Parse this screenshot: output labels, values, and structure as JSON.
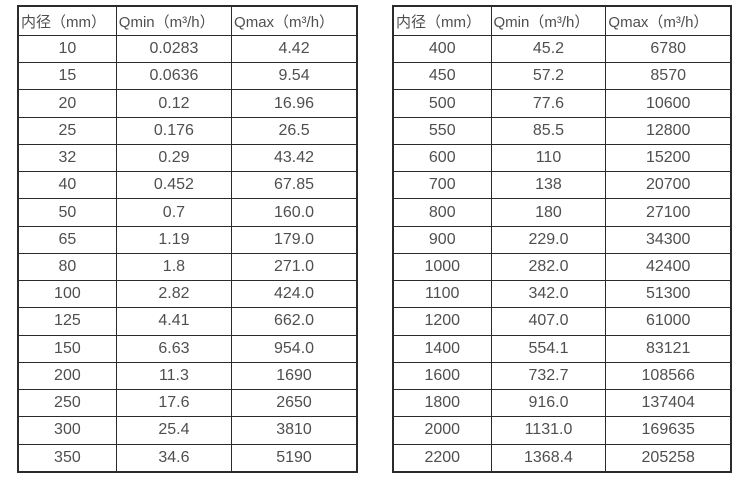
{
  "page": {
    "background_color": "#ffffff",
    "text_color": "#4f4f4f",
    "border_color": "#2b2b2b"
  },
  "tables": [
    {
      "name": "small-diameters",
      "header": [
        "内径（mm）",
        "Qmin（m³/h）",
        "Qmax（m³/h）"
      ],
      "rows": [
        [
          "10",
          "0.0283",
          "4.42"
        ],
        [
          "15",
          "0.0636",
          "9.54"
        ],
        [
          "20",
          "0.12",
          "16.96"
        ],
        [
          "25",
          "0.176",
          "26.5"
        ],
        [
          "32",
          "0.29",
          "43.42"
        ],
        [
          "40",
          "0.452",
          "67.85"
        ],
        [
          "50",
          "0.7",
          "160.0"
        ],
        [
          "65",
          "1.19",
          "179.0"
        ],
        [
          "80",
          "1.8",
          "271.0"
        ],
        [
          "100",
          "2.82",
          "424.0"
        ],
        [
          "125",
          "4.41",
          "662.0"
        ],
        [
          "150",
          "6.63",
          "954.0"
        ],
        [
          "200",
          "11.3",
          "1690"
        ],
        [
          "250",
          "17.6",
          "2650"
        ],
        [
          "300",
          "25.4",
          "3810"
        ],
        [
          "350",
          "34.6",
          "5190"
        ]
      ]
    },
    {
      "name": "large-diameters",
      "header": [
        "内径（mm）",
        "Qmin（m³/h）",
        "Qmax（m³/h）"
      ],
      "rows": [
        [
          "400",
          "45.2",
          "6780"
        ],
        [
          "450",
          "57.2",
          "8570"
        ],
        [
          "500",
          "77.6",
          "10600"
        ],
        [
          "550",
          "85.5",
          "12800"
        ],
        [
          "600",
          "110",
          "15200"
        ],
        [
          "700",
          "138",
          "20700"
        ],
        [
          "800",
          "180",
          "27100"
        ],
        [
          "900",
          "229.0",
          "34300"
        ],
        [
          "1000",
          "282.0",
          "42400"
        ],
        [
          "1100",
          "342.0",
          "51300"
        ],
        [
          "1200",
          "407.0",
          "61000"
        ],
        [
          "1400",
          "554.1",
          "83121"
        ],
        [
          "1600",
          "732.7",
          "108566"
        ],
        [
          "1800",
          "916.0",
          "137404"
        ],
        [
          "2000",
          "1131.0",
          "169635"
        ],
        [
          "2200",
          "1368.4",
          "205258"
        ]
      ]
    }
  ]
}
